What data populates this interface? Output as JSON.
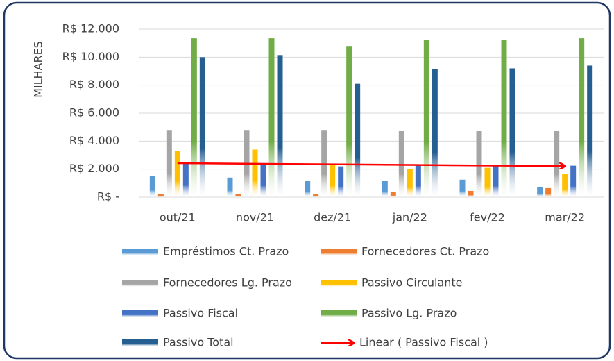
{
  "chart_data": {
    "type": "bar",
    "y_label": "MILHARES",
    "categories": [
      "out/21",
      "nov/21",
      "dez/21",
      "jan/22",
      "fev/22",
      "mar/22"
    ],
    "series": [
      {
        "name": "Empréstimos Ct. Prazo",
        "color": "#5b9bd5",
        "values": [
          1500,
          1400,
          1150,
          1150,
          1250,
          700
        ]
      },
      {
        "name": "Fornecedores Ct. Prazo",
        "color": "#ed7d31",
        "values": [
          200,
          250,
          200,
          350,
          450,
          650
        ]
      },
      {
        "name": "Fornecedores Lg. Prazo",
        "color": "#a5a5a5",
        "values": [
          4800,
          4800,
          4800,
          4750,
          4750,
          4750
        ]
      },
      {
        "name": "Passivo Circulante",
        "color": "#ffc000",
        "values": [
          3300,
          3400,
          2400,
          2000,
          2100,
          1650
        ]
      },
      {
        "name": "Passivo Fiscal",
        "color": "#4472c4",
        "values": [
          2500,
          2400,
          2200,
          2300,
          2300,
          2250
        ]
      },
      {
        "name": "Passivo Lg. Prazo",
        "color": "#70ad47",
        "values": [
          11350,
          11350,
          10800,
          11250,
          11250,
          11350
        ]
      },
      {
        "name": "Passivo Total",
        "color": "#255e91",
        "values": [
          10000,
          10150,
          8100,
          9150,
          9200,
          9400
        ]
      }
    ],
    "trendline": {
      "name": "Linear ( Passivo Fiscal )",
      "color": "#ff0000",
      "series_index": 4
    },
    "ylim": [
      0,
      12000
    ],
    "yticks": [
      {
        "value": 0,
        "label": "R$ -"
      },
      {
        "value": 2000,
        "label": "R$ 2.000"
      },
      {
        "value": 4000,
        "label": "R$ 4.000"
      },
      {
        "value": 6000,
        "label": "R$ 6.000"
      },
      {
        "value": 8000,
        "label": "R$ 8.000"
      },
      {
        "value": 10000,
        "label": "R$ 10.000"
      },
      {
        "value": 12000,
        "label": "R$ 12.000"
      }
    ],
    "grid": true
  }
}
